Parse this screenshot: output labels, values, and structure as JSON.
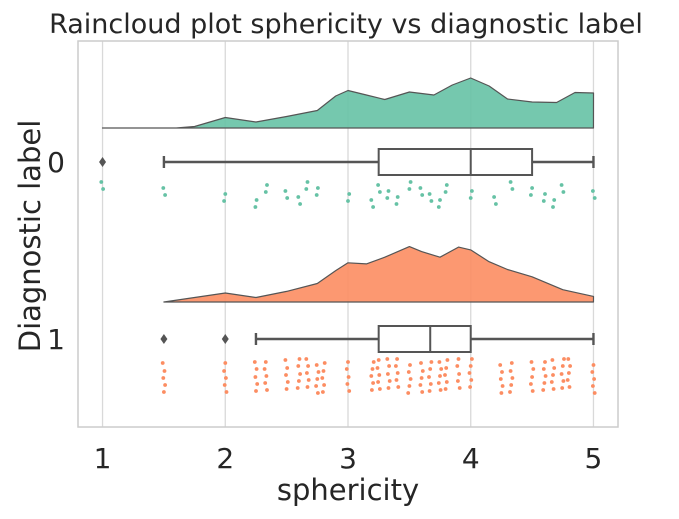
{
  "chart_data": {
    "type": "raincloud",
    "title": "Raincloud plot sphericity vs diagnostic label",
    "xlabel": "sphericity",
    "ylabel": "Diagnostic label",
    "xlim": [
      0.8,
      5.2
    ],
    "x_ticks": [
      1,
      2,
      3,
      4,
      5
    ],
    "x_tick_labels": [
      "1",
      "2",
      "3",
      "4",
      "5"
    ],
    "grid": "vertical",
    "groups": [
      {
        "label": "0",
        "color": "#66c2a5",
        "box": {
          "whisker_low": 1.5,
          "q1": 3.25,
          "median": 4.0,
          "q3": 4.5,
          "whisker_high": 5.0,
          "outliers": [
            1.0
          ]
        },
        "density": {
          "x": [
            1.0,
            1.6,
            1.75,
            2.0,
            2.25,
            2.5,
            2.75,
            2.9,
            3.0,
            3.15,
            3.3,
            3.5,
            3.7,
            3.85,
            4.0,
            4.15,
            4.3,
            4.5,
            4.7,
            4.85,
            5.0
          ],
          "y": [
            0.0,
            0.0,
            0.03,
            0.21,
            0.12,
            0.23,
            0.35,
            0.64,
            0.75,
            0.66,
            0.57,
            0.72,
            0.66,
            0.86,
            1.0,
            0.84,
            0.58,
            0.52,
            0.51,
            0.71,
            0.7
          ]
        },
        "points": [
          1.0,
          1.5,
          2.0,
          2.25,
          2.33,
          2.5,
          2.6,
          2.67,
          2.75,
          3.0,
          3.2,
          3.25,
          3.33,
          3.4,
          3.5,
          3.6,
          3.67,
          3.75,
          3.8,
          4.0,
          4.2,
          4.33,
          4.5,
          4.6,
          4.67,
          4.75,
          5.0
        ]
      },
      {
        "label": "1",
        "color": "#fc8d62",
        "box": {
          "whisker_low": 2.25,
          "q1": 3.25,
          "median": 3.67,
          "q3": 4.0,
          "whisker_high": 5.0,
          "outliers": [
            1.5,
            2.0
          ]
        },
        "density": {
          "x": [
            1.5,
            1.75,
            2.0,
            2.25,
            2.5,
            2.75,
            2.9,
            3.0,
            3.15,
            3.3,
            3.5,
            3.6,
            3.75,
            3.9,
            4.0,
            4.15,
            4.3,
            4.5,
            4.75,
            5.0
          ],
          "y": [
            0.0,
            0.08,
            0.16,
            0.08,
            0.19,
            0.33,
            0.56,
            0.7,
            0.68,
            0.8,
            0.99,
            0.9,
            0.8,
            0.98,
            0.93,
            0.72,
            0.58,
            0.45,
            0.22,
            0.1
          ]
        },
        "points": [
          2.0,
          2.25,
          2.33,
          2.5,
          2.6,
          2.67,
          2.75,
          2.8,
          3.0,
          3.2,
          3.25,
          3.33,
          3.4,
          3.5,
          3.6,
          3.67,
          3.75,
          3.8,
          3.9,
          4.0,
          4.25,
          4.33,
          4.5,
          4.6,
          4.67,
          4.75,
          4.8,
          5.0,
          1.5
        ]
      }
    ]
  }
}
